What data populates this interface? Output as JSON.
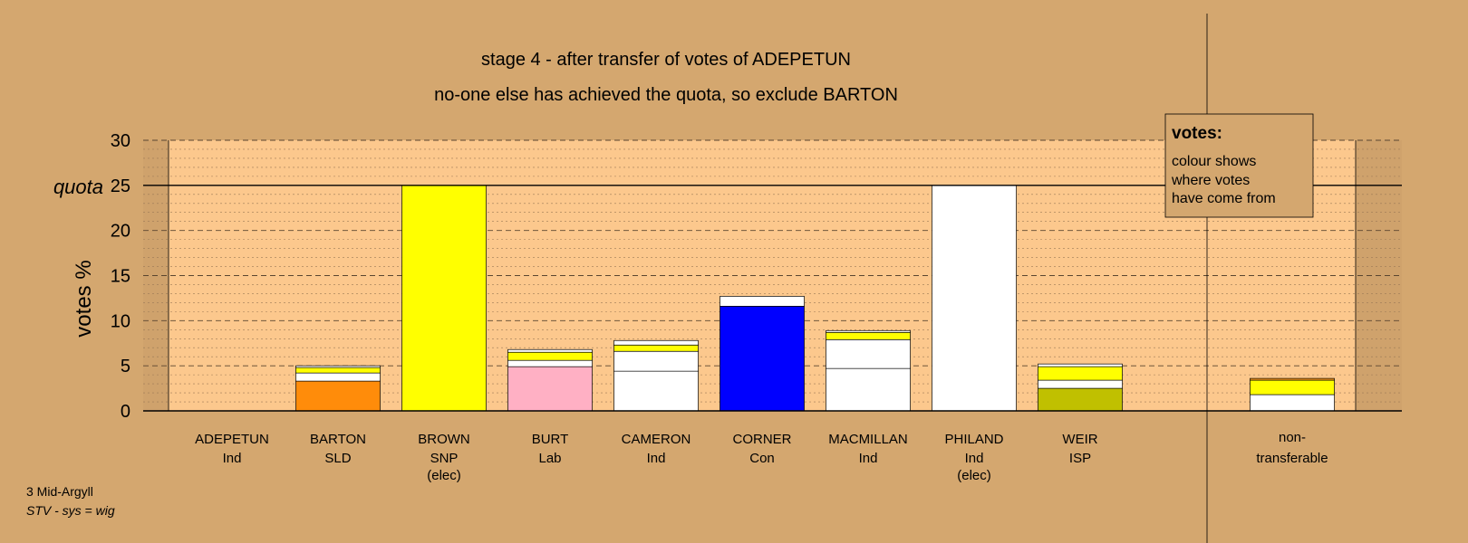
{
  "chart_data": {
    "type": "bar",
    "title": "stage 4 - after transfer of votes of ADEPETUN",
    "subtitle": "no-one else has achieved the quota, so exclude BARTON",
    "ylabel": "votes %",
    "ylim": [
      0,
      30
    ],
    "y_ticks": [
      0,
      5,
      10,
      15,
      20,
      25,
      30
    ],
    "quota": {
      "value": 25,
      "label": "quota"
    },
    "grid": true,
    "categories": [
      {
        "name": "ADEPETUN",
        "party": "Ind",
        "note": ""
      },
      {
        "name": "BARTON",
        "party": "SLD",
        "note": ""
      },
      {
        "name": "BROWN",
        "party": "SNP",
        "note": "(elec)"
      },
      {
        "name": "BURT",
        "party": "Lab",
        "note": ""
      },
      {
        "name": "CAMERON",
        "party": "Ind",
        "note": ""
      },
      {
        "name": "CORNER",
        "party": "Con",
        "note": ""
      },
      {
        "name": "MACMILLAN",
        "party": "Ind",
        "note": ""
      },
      {
        "name": "PHILAND",
        "party": "Ind",
        "note": "(elec)"
      },
      {
        "name": "WEIR",
        "party": "ISP",
        "note": ""
      }
    ],
    "nontransferable": {
      "label_line1": "non-",
      "label_line2": "transferable",
      "segments": [
        {
          "value": 1.8,
          "color": "#ffffff"
        },
        {
          "value": 1.6,
          "color": "#ffff00"
        },
        {
          "value": 0.2,
          "color": "#ff9a1a"
        }
      ]
    },
    "bars": [
      [],
      [
        {
          "value": 3.3,
          "color": "#ff8c0a"
        },
        {
          "value": 0.9,
          "color": "#ffffff"
        },
        {
          "value": 0.6,
          "color": "#ffff00"
        },
        {
          "value": 0.2,
          "color": "#ffffff"
        }
      ],
      [
        {
          "value": 25.0,
          "color": "#ffff00"
        }
      ],
      [
        {
          "value": 4.9,
          "color": "#ffb0c4"
        },
        {
          "value": 0.7,
          "color": "#ffffff"
        },
        {
          "value": 0.9,
          "color": "#ffff00"
        },
        {
          "value": 0.3,
          "color": "#ffffff"
        }
      ],
      [
        {
          "value": 4.4,
          "color": "#ffffff"
        },
        {
          "value": 2.2,
          "color": "#ffffff"
        },
        {
          "value": 0.7,
          "color": "#ffff00"
        },
        {
          "value": 0.5,
          "color": "#ffffff"
        }
      ],
      [
        {
          "value": 11.6,
          "color": "#0000ff"
        },
        {
          "value": 1.1,
          "color": "#ffffff"
        }
      ],
      [
        {
          "value": 4.7,
          "color": "#ffffff"
        },
        {
          "value": 3.2,
          "color": "#ffffff"
        },
        {
          "value": 0.8,
          "color": "#ffff00"
        },
        {
          "value": 0.2,
          "color": "#ffffff"
        }
      ],
      [
        {
          "value": 25.0,
          "color": "#ffffff"
        }
      ],
      [
        {
          "value": 2.5,
          "color": "#c0c000"
        },
        {
          "value": 0.9,
          "color": "#ffffff"
        },
        {
          "value": 1.5,
          "color": "#ffff00"
        },
        {
          "value": 0.3,
          "color": "#ffffff"
        }
      ]
    ],
    "colors": {
      "background": "#d4a76f",
      "plot_bg": "#fcc88d",
      "side_shade": "#cfa26c",
      "legend_box": "#d4a76f"
    }
  },
  "legend": {
    "heading": "votes:",
    "line1": "colour shows",
    "line2": "where votes",
    "line3": "have come from"
  },
  "footer": {
    "region": "3 Mid-Argyll",
    "system": "STV - sys = wig"
  }
}
